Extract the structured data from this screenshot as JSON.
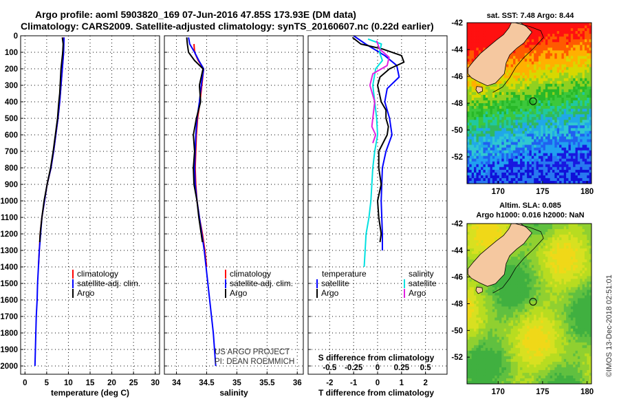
{
  "header": {
    "line1": "Argo profile: aoml 5903820_169 07-Jun-2016 47.85S 173.93E (DM data)",
    "line2": "Climatology: CARS2009. Satellite-adjusted climatology: synTS_20160607.nc (0.22d earlier)"
  },
  "colors": {
    "climatology": "#ff0000",
    "satellite": "#0000ff",
    "argo": "#000000",
    "argo_salinity_diff": "#e020e0",
    "satellite_salinity_diff": "#00e0e0",
    "land": "#f5c8a0"
  },
  "chart_data": [
    {
      "id": "temperature",
      "type": "line",
      "xlabel": "temperature (deg C)",
      "ylabel": "",
      "xlim": [
        -1,
        31
      ],
      "ylim": [
        2050,
        0
      ],
      "x_ticks": [
        0,
        5,
        10,
        15,
        20,
        25,
        30
      ],
      "y_ticks": [
        0,
        100,
        200,
        300,
        400,
        500,
        600,
        700,
        800,
        900,
        1000,
        1100,
        1200,
        1300,
        1400,
        1500,
        1600,
        1700,
        1800,
        1900,
        2000
      ],
      "y_tick_labels": [
        "0",
        "100",
        "200",
        "300",
        "400",
        "500",
        "600",
        "700",
        "800",
        "900",
        "1000",
        "1100",
        "1200",
        "1300",
        "1400",
        "1500",
        "1600",
        "1700",
        "1800",
        "1900",
        "2000"
      ],
      "legend_position": "bottom-right",
      "series": [
        {
          "name": "climatology",
          "color": "#ff0000",
          "points": [
            [
              8.9,
              10
            ],
            [
              8.9,
              100
            ],
            [
              8.6,
              200
            ],
            [
              8.3,
              300
            ],
            [
              8.0,
              400
            ],
            [
              7.6,
              500
            ],
            [
              7.1,
              600
            ],
            [
              6.6,
              700
            ],
            [
              6.0,
              800
            ],
            [
              5.1,
              900
            ],
            [
              4.5,
              1000
            ],
            [
              3.9,
              1100
            ],
            [
              3.5,
              1200
            ],
            [
              3.3,
              1300
            ],
            [
              3.1,
              1400
            ]
          ]
        },
        {
          "name": "satellite-adj. clim.",
          "color": "#0000ff",
          "points": [
            [
              9.0,
              10
            ],
            [
              8.9,
              100
            ],
            [
              8.6,
              200
            ],
            [
              8.3,
              300
            ],
            [
              8.0,
              400
            ],
            [
              7.6,
              500
            ],
            [
              7.1,
              600
            ],
            [
              6.6,
              700
            ],
            [
              6.0,
              800
            ],
            [
              5.1,
              900
            ],
            [
              4.5,
              1000
            ],
            [
              3.9,
              1100
            ],
            [
              3.6,
              1200
            ],
            [
              3.3,
              1300
            ],
            [
              3.1,
              1400
            ],
            [
              2.9,
              1500
            ],
            [
              2.8,
              1600
            ],
            [
              2.6,
              1700
            ],
            [
              2.5,
              1800
            ],
            [
              2.4,
              1900
            ],
            [
              2.3,
              2000
            ]
          ]
        },
        {
          "name": "Argo",
          "color": "#000000",
          "points": [
            [
              8.6,
              10
            ],
            [
              8.8,
              50
            ],
            [
              8.7,
              100
            ],
            [
              8.5,
              150
            ],
            [
              8.3,
              200
            ],
            [
              8.1,
              300
            ],
            [
              8.0,
              350
            ],
            [
              7.8,
              400
            ],
            [
              7.5,
              500
            ],
            [
              7.0,
              600
            ],
            [
              6.5,
              700
            ],
            [
              5.9,
              800
            ],
            [
              5.1,
              900
            ],
            [
              4.4,
              1000
            ],
            [
              3.9,
              1100
            ],
            [
              3.5,
              1200
            ],
            [
              3.4,
              1250
            ]
          ]
        }
      ],
      "legend": [
        "climatology",
        "satellite-adj. clim.",
        "Argo"
      ]
    },
    {
      "id": "salinity",
      "type": "line",
      "xlabel": "salinity",
      "ylabel": "",
      "xlim": [
        33.8,
        36.1
      ],
      "ylim": [
        2050,
        0
      ],
      "x_ticks": [
        34,
        34.5,
        35,
        35.5,
        36
      ],
      "y_ticks": [
        0,
        100,
        200,
        300,
        400,
        500,
        600,
        700,
        800,
        900,
        1000,
        1100,
        1200,
        1300,
        1400,
        1500,
        1600,
        1700,
        1800,
        1900,
        2000
      ],
      "legend_position": "bottom-right",
      "series": [
        {
          "name": "climatology",
          "color": "#ff0000",
          "points": [
            [
              34.29,
              50
            ],
            [
              34.3,
              100
            ],
            [
              34.36,
              150
            ],
            [
              34.45,
              200
            ],
            [
              34.42,
              300
            ],
            [
              34.39,
              400
            ],
            [
              34.35,
              500
            ],
            [
              34.33,
              600
            ],
            [
              34.32,
              700
            ],
            [
              34.31,
              800
            ],
            [
              34.32,
              900
            ],
            [
              34.34,
              1000
            ],
            [
              34.38,
              1100
            ],
            [
              34.43,
              1200
            ],
            [
              34.47,
              1300
            ],
            [
              34.5,
              1400
            ]
          ]
        },
        {
          "name": "satellite-adj. clim.",
          "color": "#0000ff",
          "points": [
            [
              34.2,
              10
            ],
            [
              34.22,
              50
            ],
            [
              34.3,
              100
            ],
            [
              34.37,
              150
            ],
            [
              34.45,
              200
            ],
            [
              34.41,
              300
            ],
            [
              34.38,
              400
            ],
            [
              34.34,
              500
            ],
            [
              34.32,
              600
            ],
            [
              34.31,
              700
            ],
            [
              34.3,
              800
            ],
            [
              34.31,
              900
            ],
            [
              34.34,
              1000
            ],
            [
              34.38,
              1100
            ],
            [
              34.42,
              1200
            ],
            [
              34.46,
              1300
            ],
            [
              34.49,
              1400
            ],
            [
              34.52,
              1500
            ],
            [
              34.55,
              1600
            ],
            [
              34.58,
              1700
            ],
            [
              34.61,
              1800
            ],
            [
              34.63,
              1900
            ],
            [
              34.65,
              2000
            ]
          ]
        },
        {
          "name": "Argo",
          "color": "#000000",
          "points": [
            [
              34.17,
              10
            ],
            [
              34.18,
              50
            ],
            [
              34.2,
              100
            ],
            [
              34.3,
              150
            ],
            [
              34.44,
              200
            ],
            [
              34.38,
              300
            ],
            [
              34.4,
              400
            ],
            [
              34.33,
              500
            ],
            [
              34.28,
              600
            ],
            [
              34.3,
              700
            ],
            [
              34.28,
              800
            ],
            [
              34.29,
              900
            ],
            [
              34.34,
              1000
            ],
            [
              34.37,
              1100
            ],
            [
              34.41,
              1200
            ],
            [
              34.43,
              1250
            ]
          ]
        }
      ],
      "legend": [
        "climatology",
        "satellite-adj. clim.",
        "Argo"
      ],
      "credit": [
        "US ARGO PROJECT",
        "PI: DEAN ROEMMICH"
      ]
    },
    {
      "id": "difference",
      "type": "line",
      "xlabel": "T difference from climatology",
      "x2label": "S difference from climatology",
      "xlim": [
        -2.9,
        2.9
      ],
      "ylim": [
        2050,
        0
      ],
      "x_ticks": [
        -2,
        -1,
        0,
        1,
        2
      ],
      "x_tick_labels": [
        "-2",
        "-1",
        "0",
        "1",
        "2"
      ],
      "x2_tick_values": [
        -0.5,
        -0.25,
        0,
        0.25,
        0.5
      ],
      "x2_tick_labels": [
        "-0.5",
        "-0.25",
        "0",
        "0.25",
        "0.5"
      ],
      "y_ticks": [
        0,
        100,
        200,
        300,
        400,
        500,
        600,
        700,
        800,
        900,
        1000,
        1100,
        1200,
        1300,
        1400,
        1500,
        1600,
        1700,
        1800,
        1900,
        2000
      ],
      "legend_position": "bottom",
      "legend_headers": [
        "temperature",
        "salinity"
      ],
      "series": [
        {
          "name": "temperature satellite",
          "color": "#0000ff",
          "points": [
            [
              -1.0,
              0
            ],
            [
              -0.5,
              50
            ],
            [
              0.3,
              120
            ],
            [
              0.8,
              180
            ],
            [
              0.9,
              250
            ],
            [
              0.4,
              320
            ],
            [
              0.3,
              400
            ],
            [
              0.5,
              500
            ],
            [
              0.6,
              600
            ],
            [
              0.35,
              700
            ],
            [
              0.2,
              800
            ],
            [
              0.15,
              1000
            ],
            [
              0.2,
              1200
            ],
            [
              0.2,
              1300
            ]
          ]
        },
        {
          "name": "temperature Argo",
          "color": "#000000",
          "points": [
            [
              -1.05,
              10
            ],
            [
              -0.7,
              50
            ],
            [
              0.2,
              80
            ],
            [
              1.0,
              120
            ],
            [
              1.1,
              160
            ],
            [
              0.5,
              200
            ],
            [
              0.1,
              250
            ],
            [
              0.0,
              300
            ],
            [
              0.15,
              400
            ],
            [
              0.35,
              450
            ],
            [
              0.35,
              500
            ],
            [
              0.45,
              550
            ],
            [
              0.4,
              600
            ],
            [
              0.05,
              700
            ],
            [
              0.05,
              800
            ],
            [
              0.15,
              900
            ],
            [
              0.0,
              1000
            ],
            [
              0.05,
              1100
            ],
            [
              0.15,
              1200
            ],
            [
              0.1,
              1250
            ]
          ]
        },
        {
          "name": "salinity satellite",
          "color": "#00e0e0",
          "points": [
            [
              -0.1,
              20
            ],
            [
              0.04,
              50
            ],
            [
              0.02,
              100
            ],
            [
              0.05,
              150
            ],
            [
              -0.02,
              200
            ],
            [
              -0.05,
              300
            ],
            [
              -0.03,
              400
            ],
            [
              -0.01,
              500
            ],
            [
              0.0,
              600
            ],
            [
              -0.03,
              700
            ],
            [
              -0.05,
              800
            ],
            [
              -0.06,
              900
            ],
            [
              -0.07,
              1000
            ],
            [
              -0.09,
              1100
            ],
            [
              -0.12,
              1200
            ],
            [
              -0.13,
              1300
            ],
            [
              -0.14,
              1400
            ]
          ]
        },
        {
          "name": "salinity Argo",
          "color": "#e020e0",
          "points": [
            [
              -0.01,
              30
            ],
            [
              0.02,
              80
            ],
            [
              0.12,
              130
            ],
            [
              0.1,
              180
            ],
            [
              -0.05,
              230
            ],
            [
              -0.08,
              300
            ],
            [
              -0.03,
              400
            ],
            [
              -0.05,
              500
            ],
            [
              -0.06,
              550
            ],
            [
              -0.02,
              600
            ],
            [
              -0.05,
              650
            ]
          ]
        }
      ],
      "legend": {
        "temperature": [
          "satellite",
          "Argo"
        ],
        "salinity": [
          "satellite",
          "Argo"
        ]
      }
    },
    {
      "id": "sst_map",
      "type": "heatmap",
      "title": "sat. SST: 7.48 Argo: 8.44",
      "x_ticks": [
        170,
        175,
        180
      ],
      "y_ticks": [
        -42,
        -44,
        -46,
        -48,
        -50,
        -52
      ],
      "lon_range": [
        166.5,
        180.5
      ],
      "lat_range": [
        -54,
        -42
      ],
      "marker": {
        "lon": 173.93,
        "lat": -47.85
      }
    },
    {
      "id": "sla_map",
      "type": "heatmap",
      "title": "Altim. SLA: 0.085",
      "subtitle": "Argo h1000: 0.016 h2000: NaN",
      "x_ticks": [
        170,
        175,
        180
      ],
      "y_ticks": [
        -42,
        -44,
        -46,
        -48,
        -50,
        -52
      ],
      "lon_range": [
        166.5,
        180.5
      ],
      "lat_range": [
        -54,
        -42
      ],
      "marker": {
        "lon": 173.93,
        "lat": -47.85
      }
    }
  ],
  "footer": {
    "watermark": "©IMOS 13-Dec-2018 02:51:01"
  }
}
